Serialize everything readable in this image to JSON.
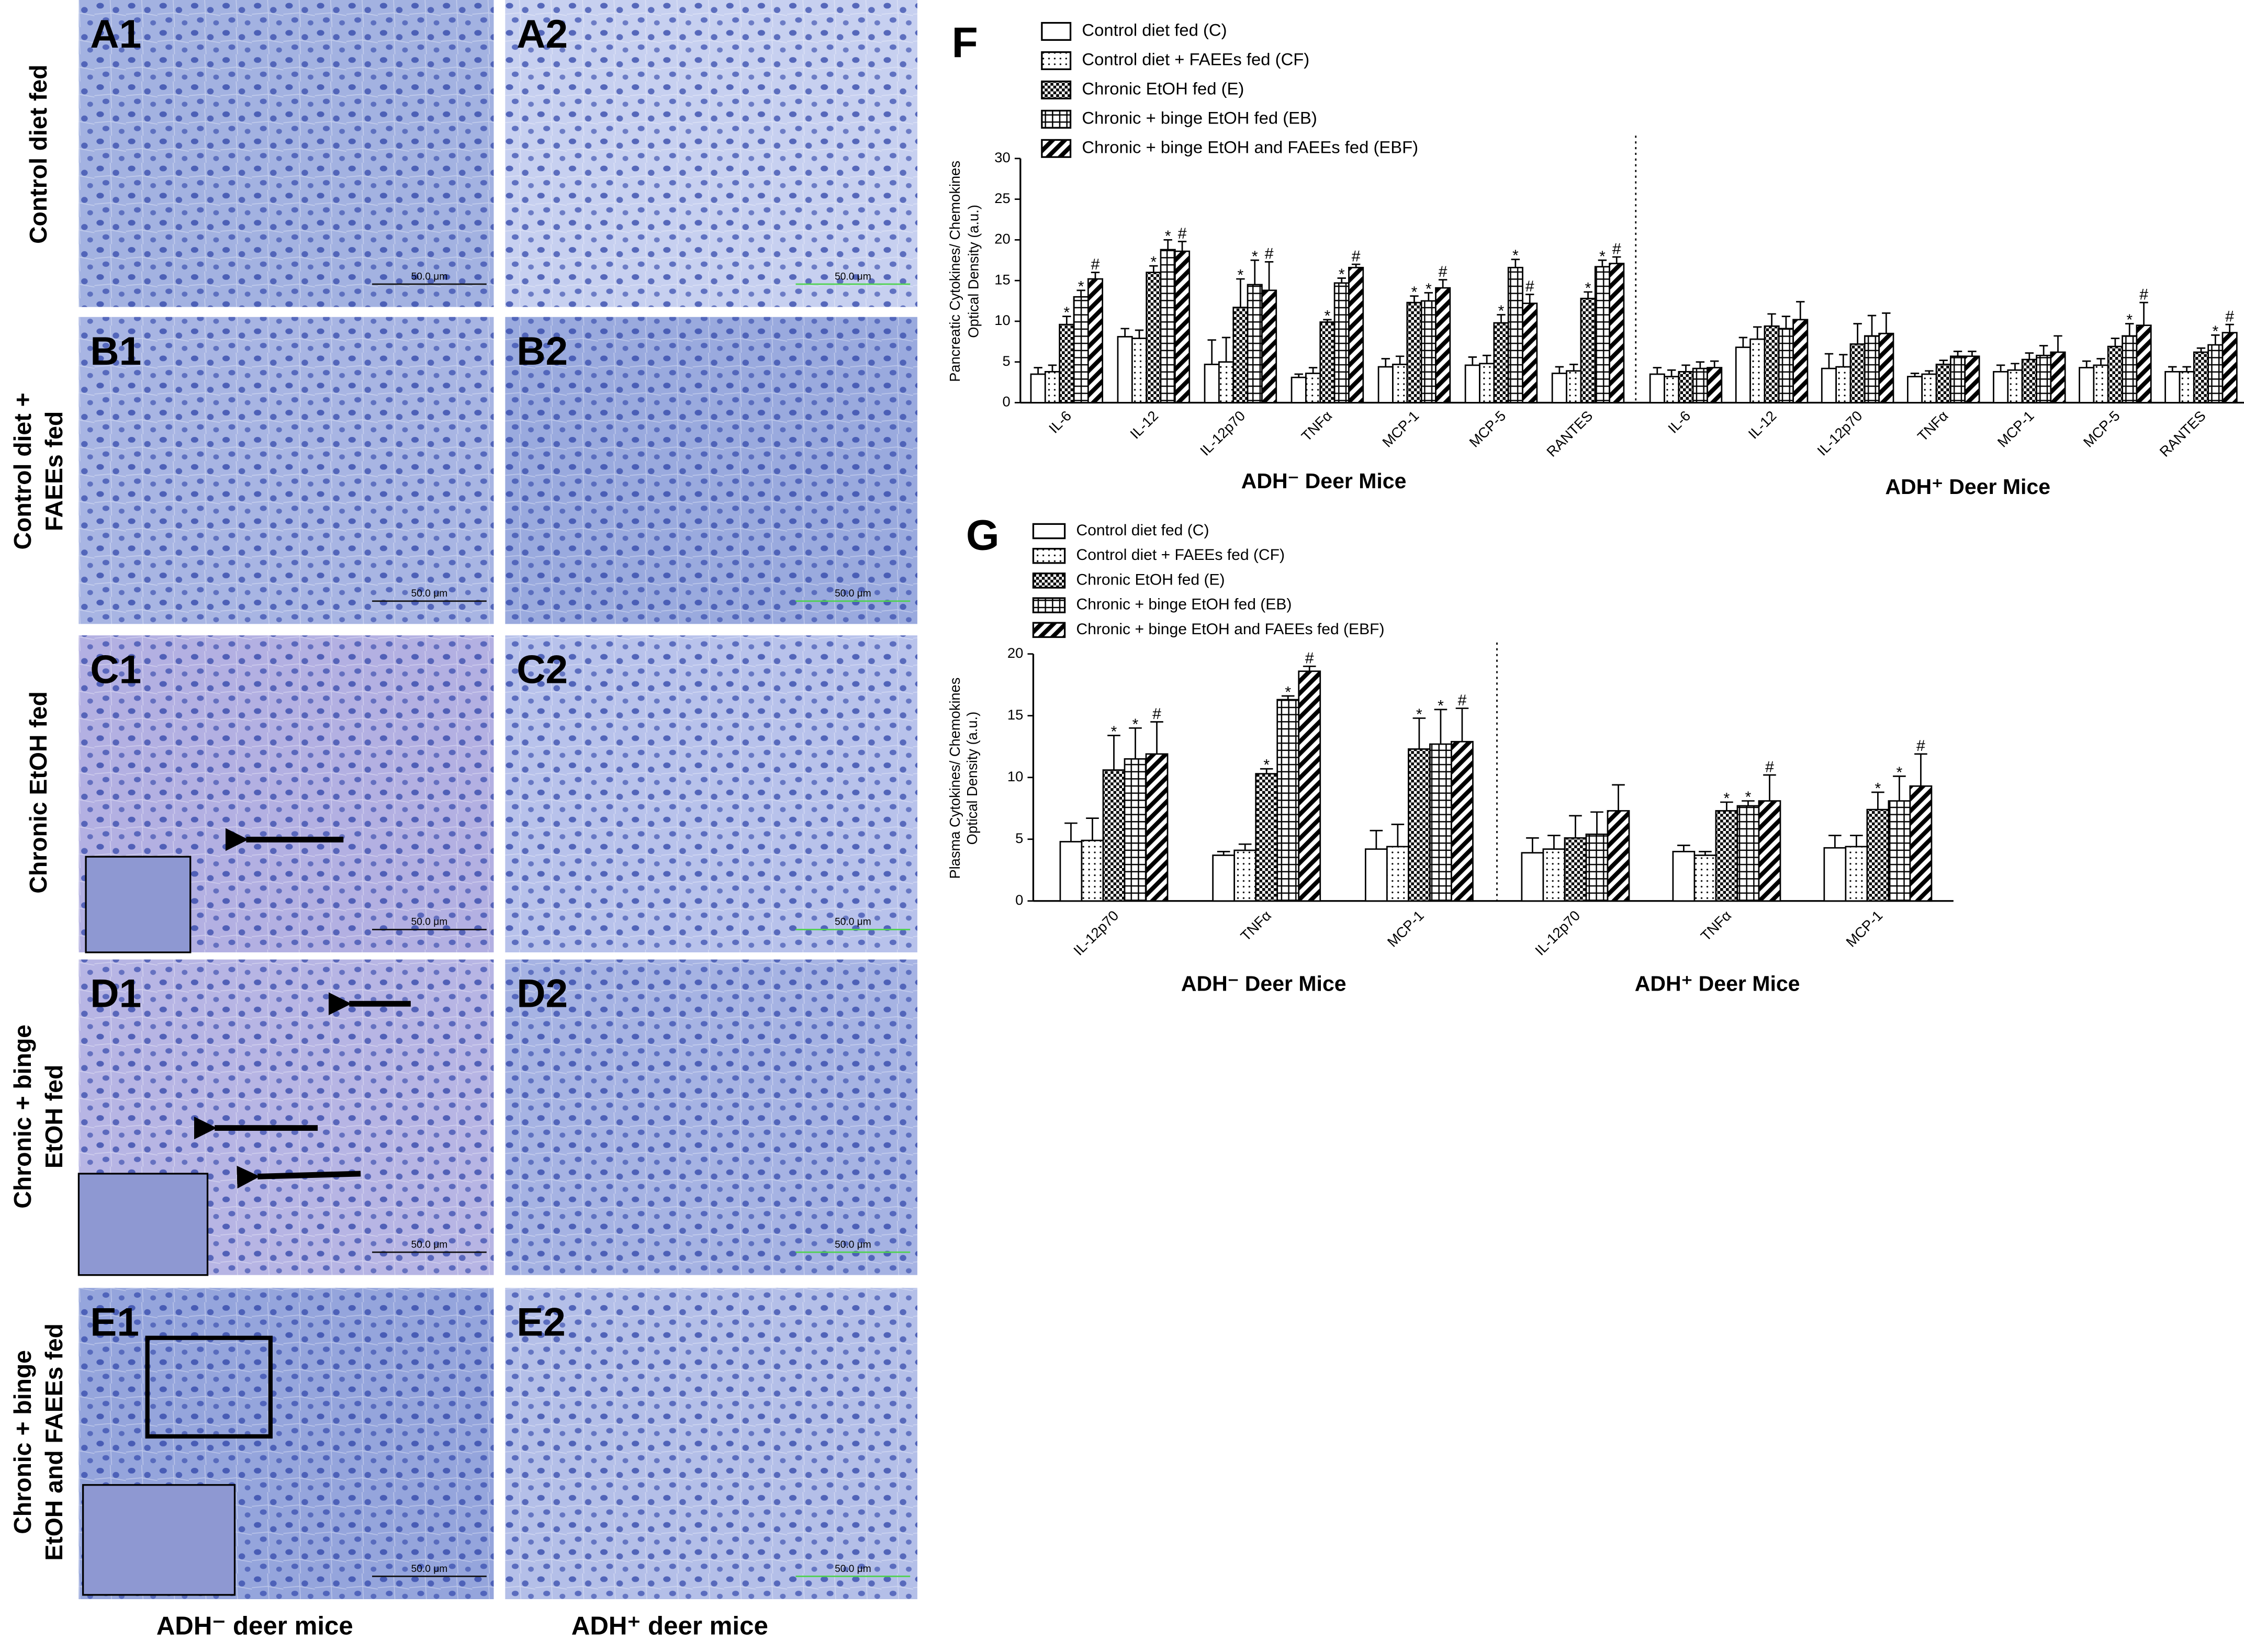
{
  "figure": {
    "panel_labels": [
      [
        "A1",
        "A2"
      ],
      [
        "B1",
        "B2"
      ],
      [
        "C1",
        "C2"
      ],
      [
        "D1",
        "D2"
      ],
      [
        "E1",
        "E2"
      ]
    ],
    "row_labels": [
      [
        "Control diet fed"
      ],
      [
        "Control diet +",
        "FAEEs fed"
      ],
      [
        "Chronic EtOH fed"
      ],
      [
        "Chronic  + binge",
        "EtOH fed"
      ],
      [
        "Chronic + binge",
        "EtOH and FAEEs fed"
      ]
    ],
    "column_labels": [
      "ADH⁻ deer mice",
      "ADH⁺ deer mice"
    ],
    "scale_bar_label": "50.0 μm"
  },
  "chart_data": [
    {
      "type": "bar",
      "panel_label": "F",
      "y_label": [
        "Pancreatic Cytokines/ Chemokines",
        "Optical Density (a.u.)"
      ],
      "ylim": [
        0,
        30
      ],
      "yticks": [
        0,
        5,
        10,
        15,
        20,
        25,
        30
      ],
      "groups": [
        "ADH⁻ Deer Mice",
        "ADH⁺ Deer Mice"
      ],
      "categories": [
        [
          "IL-6",
          "IL-12",
          "IL-12p70",
          "TNFα",
          "MCP-1",
          "MCP-5",
          "RANTES"
        ],
        [
          "IL-6",
          "IL-12",
          "IL-12p70",
          "TNFα",
          "MCP-1",
          "MCP-5",
          "RANTES"
        ]
      ],
      "group_divider": "dotted",
      "series": [
        {
          "name": "Control diet fed (C)",
          "pattern": "none",
          "color": "#000000",
          "values": [
            [
              3.5,
              8.1,
              4.7,
              3.1,
              4.4,
              4.6,
              3.6
            ],
            [
              3.5,
              6.8,
              4.2,
              3.2,
              3.8,
              4.3,
              3.8
            ]
          ],
          "errors": [
            [
              0.8,
              1,
              3,
              0.4,
              1,
              1,
              0.8
            ],
            [
              0.8,
              1.2,
              1.8,
              0.4,
              0.8,
              0.8,
              0.6
            ]
          ],
          "annotations": [
            [
              null,
              null,
              null,
              null,
              null,
              null,
              null
            ],
            [
              null,
              null,
              null,
              null,
              null,
              null,
              null
            ]
          ]
        },
        {
          "name": "Control diet + FAEEs fed (CF)",
          "pattern": "dots",
          "color": "#000000",
          "values": [
            [
              3.8,
              7.9,
              5,
              3.6,
              4.7,
              4.8,
              3.9
            ],
            [
              3.2,
              7.8,
              4.4,
              3.5,
              4,
              4.6,
              3.8
            ]
          ],
          "errors": [
            [
              0.8,
              1,
              3,
              0.7,
              1,
              1,
              0.8
            ],
            [
              0.8,
              1.5,
              1.5,
              0.4,
              0.8,
              0.8,
              0.6
            ]
          ],
          "annotations": [
            [
              null,
              null,
              null,
              null,
              null,
              null,
              null
            ],
            [
              null,
              null,
              null,
              null,
              null,
              null,
              null
            ]
          ]
        },
        {
          "name": "Chronic EtOH fed (E)",
          "pattern": "checker",
          "color": "#000000",
          "values": [
            [
              9.6,
              16,
              11.7,
              9.9,
              12.3,
              9.8,
              12.8
            ],
            [
              3.8,
              9.4,
              7.2,
              4.7,
              5.3,
              6.9,
              6.2
            ]
          ],
          "errors": [
            [
              1,
              0.8,
              3.5,
              0.3,
              0.8,
              1,
              0.8
            ],
            [
              0.8,
              1.5,
              2.5,
              0.5,
              0.8,
              1,
              0.5
            ]
          ],
          "annotations": [
            [
              "*",
              "*",
              "*",
              "*",
              "*",
              "*",
              "*"
            ],
            [
              null,
              null,
              null,
              null,
              null,
              null,
              null
            ]
          ]
        },
        {
          "name": "Chronic + binge EtOH fed (EB)",
          "pattern": "grid",
          "color": "#000000",
          "values": [
            [
              13,
              18.8,
              14.5,
              14.7,
              12.5,
              16.6,
              16.7
            ],
            [
              4.2,
              9.1,
              8.2,
              5.7,
              5.8,
              8.2,
              7.1
            ]
          ],
          "errors": [
            [
              0.8,
              1.2,
              3,
              0.6,
              1,
              1,
              0.8
            ],
            [
              0.8,
              1.5,
              2.5,
              0.6,
              1.2,
              1.5,
              1.2
            ]
          ],
          "annotations": [
            [
              "*",
              "*",
              "*",
              "*",
              "*",
              "*",
              "*"
            ],
            [
              null,
              null,
              null,
              null,
              null,
              "*",
              "*"
            ]
          ]
        },
        {
          "name": "Chronic + binge EtOH and FAEEs fed (EBF)",
          "pattern": "diagonal",
          "color": "#000000",
          "values": [
            [
              15.2,
              18.6,
              13.8,
              16.6,
              14.1,
              12.2,
              17.1
            ],
            [
              4.3,
              10.2,
              8.5,
              5.7,
              6.2,
              9.5,
              8.6
            ]
          ],
          "errors": [
            [
              0.8,
              1.2,
              3.5,
              0.4,
              1,
              1.1,
              0.8
            ],
            [
              0.8,
              2.2,
              2.5,
              0.6,
              2,
              2.8,
              1
            ]
          ],
          "annotations": [
            [
              "#",
              "#",
              "#",
              "#",
              "#",
              "#",
              "#"
            ],
            [
              null,
              null,
              null,
              null,
              null,
              "#",
              "#"
            ]
          ]
        }
      ]
    },
    {
      "type": "bar",
      "panel_label": "G",
      "y_label": [
        "Plasma Cytokines/ Chemokines",
        "Optical Density (a.u.)"
      ],
      "ylim": [
        0,
        20
      ],
      "yticks": [
        0,
        5,
        10,
        15,
        20
      ],
      "groups": [
        "ADH⁻ Deer Mice",
        "ADH⁺ Deer Mice"
      ],
      "categories": [
        [
          "IL-12p70",
          "TNFα",
          "MCP-1"
        ],
        [
          "IL-12p70",
          "TNFα",
          "MCP-1"
        ]
      ],
      "group_divider": "dotted",
      "series": [
        {
          "name": "Control diet fed (C)",
          "pattern": "none",
          "color": "#000000",
          "values": [
            [
              4.8,
              3.7,
              4.2
            ],
            [
              3.9,
              4,
              4.3
            ]
          ],
          "errors": [
            [
              1.5,
              0.3,
              1.5
            ],
            [
              1.2,
              0.5,
              1
            ]
          ],
          "annotations": [
            [
              null,
              null,
              null
            ],
            [
              null,
              null,
              null
            ]
          ]
        },
        {
          "name": "Control diet + FAEEs fed (CF)",
          "pattern": "dots",
          "color": "#000000",
          "values": [
            [
              4.9,
              4.1,
              4.4
            ],
            [
              4.2,
              3.7,
              4.4
            ]
          ],
          "errors": [
            [
              1.8,
              0.5,
              1.8
            ],
            [
              1.1,
              0.3,
              0.9
            ]
          ],
          "annotations": [
            [
              null,
              null,
              null
            ],
            [
              null,
              null,
              null
            ]
          ]
        },
        {
          "name": "Chronic EtOH fed (E)",
          "pattern": "checker",
          "color": "#000000",
          "values": [
            [
              10.6,
              10.3,
              12.3
            ],
            [
              5.1,
              7.3,
              7.4
            ]
          ],
          "errors": [
            [
              2.8,
              0.4,
              2.5
            ],
            [
              1.8,
              0.7,
              1.4
            ]
          ],
          "annotations": [
            [
              "*",
              "*",
              "*"
            ],
            [
              null,
              "*",
              "*"
            ]
          ]
        },
        {
          "name": "Chronic + binge EtOH fed (EB)",
          "pattern": "grid",
          "color": "#000000",
          "values": [
            [
              11.5,
              16.3,
              12.7
            ],
            [
              5.4,
              7.7,
              8.1
            ]
          ],
          "errors": [
            [
              2.5,
              0.3,
              2.8
            ],
            [
              1.8,
              0.4,
              2
            ]
          ],
          "annotations": [
            [
              "*",
              "*",
              "*"
            ],
            [
              null,
              "*",
              "*"
            ]
          ]
        },
        {
          "name": "Chronic + binge EtOH and FAEEs fed (EBF)",
          "pattern": "diagonal",
          "color": "#000000",
          "values": [
            [
              11.9,
              18.6,
              12.9
            ],
            [
              7.3,
              8.1,
              9.3
            ]
          ],
          "errors": [
            [
              2.6,
              0.4,
              2.7
            ],
            [
              2.1,
              2.1,
              2.6
            ]
          ],
          "annotations": [
            [
              "#",
              "#",
              "#"
            ],
            [
              null,
              "#",
              "#"
            ]
          ]
        }
      ]
    }
  ]
}
